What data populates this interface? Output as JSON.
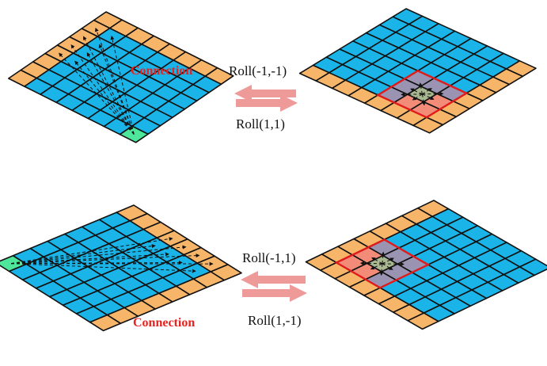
{
  "labels": {
    "top_roll_left": "Roll(-1,-1)",
    "top_roll_right": "Roll(1,1)",
    "bottom_roll_left": "Roll(-1,1)",
    "bottom_roll_right": "Roll(1,-1)",
    "connection_top": "Connection",
    "connection_bottom": "Connection"
  },
  "colors": {
    "cell_blue": "#1AB4E8",
    "cell_orange": "#F7B56A",
    "cell_green": "#4DE69A",
    "cell_salmon": "#F28C78",
    "cell_purple": "#9A93B2",
    "cell_olive": "#A9B890",
    "window_red": "#E01B1B",
    "arrow_pink": "#EE9A98",
    "label_red": "#E8231F",
    "grid_line": "#111111"
  },
  "grid_size": 8
}
